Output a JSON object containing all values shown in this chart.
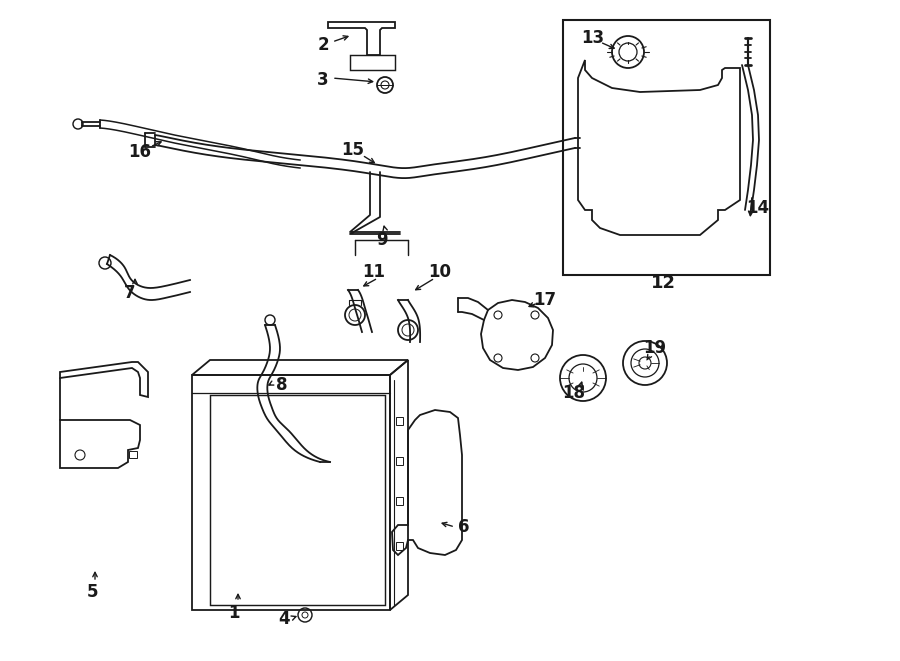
{
  "bg_color": "#ffffff",
  "line_color": "#1a1a1a",
  "lw": 1.3,
  "fig_w": 9.0,
  "fig_h": 6.61,
  "dpi": 100
}
